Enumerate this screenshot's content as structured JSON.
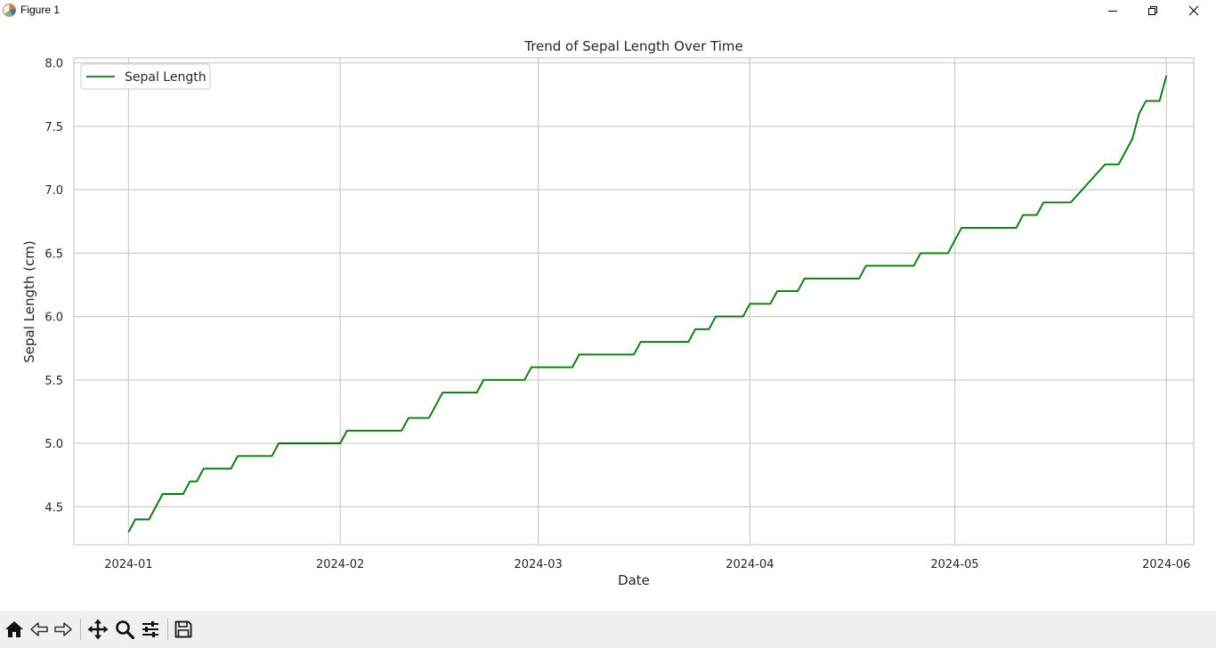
{
  "window": {
    "title": "Figure 1",
    "controls": [
      "minimize",
      "restore",
      "close"
    ]
  },
  "toolbar": {
    "buttons": [
      "home-icon",
      "back-icon",
      "forward-icon",
      "pan-icon",
      "zoom-icon",
      "configure-icon",
      "save-icon"
    ]
  },
  "chart_data": {
    "type": "line",
    "title": "Trend of Sepal Length Over Time",
    "xlabel": "Date",
    "ylabel": "Sepal Length (cm)",
    "x_ticks": [
      "2024-01",
      "2024-02",
      "2024-03",
      "2024-04",
      "2024-05",
      "2024-06"
    ],
    "y_ticks": [
      "4.5",
      "5.0",
      "5.5",
      "6.0",
      "6.5",
      "7.0",
      "7.5",
      "8.0"
    ],
    "xlim": [
      "2023-12-24",
      "2024-06-05"
    ],
    "ylim": [
      4.2,
      8.04
    ],
    "grid": true,
    "legend_position": "upper-left",
    "series": [
      {
        "name": "Sepal Length",
        "color": "#008000",
        "x": [
          "2024-01-01",
          "2024-01-02",
          "2024-01-04",
          "2024-01-06",
          "2024-01-09",
          "2024-01-10",
          "2024-01-11",
          "2024-01-12",
          "2024-01-16",
          "2024-01-17",
          "2024-01-22",
          "2024-01-23",
          "2024-02-01",
          "2024-02-02",
          "2024-02-10",
          "2024-02-11",
          "2024-02-14",
          "2024-02-16",
          "2024-02-21",
          "2024-02-22",
          "2024-02-28",
          "2024-02-29",
          "2024-03-06",
          "2024-03-07",
          "2024-03-15",
          "2024-03-16",
          "2024-03-23",
          "2024-03-24",
          "2024-03-26",
          "2024-03-27",
          "2024-03-31",
          "2024-04-01",
          "2024-04-04",
          "2024-04-05",
          "2024-04-08",
          "2024-04-09",
          "2024-04-17",
          "2024-04-18",
          "2024-04-25",
          "2024-04-26",
          "2024-04-30",
          "2024-05-01",
          "2024-05-02",
          "2024-05-10",
          "2024-05-11",
          "2024-05-13",
          "2024-05-14",
          "2024-05-18",
          "2024-05-23",
          "2024-05-25",
          "2024-05-27",
          "2024-05-28",
          "2024-05-29",
          "2024-05-31",
          "2024-06-01"
        ],
        "y": [
          4.3,
          4.4,
          4.4,
          4.6,
          4.6,
          4.7,
          4.7,
          4.8,
          4.8,
          4.9,
          4.9,
          5.0,
          5.0,
          5.1,
          5.1,
          5.2,
          5.2,
          5.4,
          5.4,
          5.5,
          5.5,
          5.6,
          5.6,
          5.7,
          5.7,
          5.8,
          5.8,
          5.9,
          5.9,
          6.0,
          6.0,
          6.1,
          6.1,
          6.2,
          6.2,
          6.3,
          6.3,
          6.4,
          6.4,
          6.5,
          6.5,
          6.6,
          6.7,
          6.7,
          6.8,
          6.8,
          6.9,
          6.9,
          7.2,
          7.2,
          7.4,
          7.6,
          7.7,
          7.7,
          7.9
        ]
      }
    ]
  }
}
